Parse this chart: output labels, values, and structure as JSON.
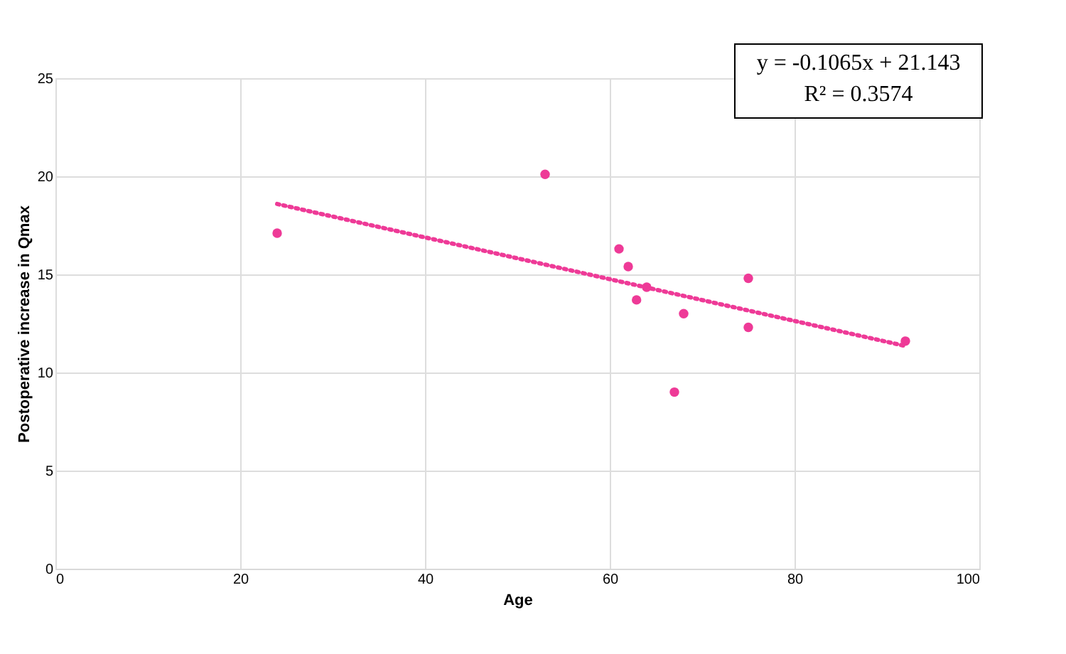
{
  "chart_data": {
    "type": "scatter",
    "xlabel": "Age",
    "ylabel": "Postoperative increase in Qmax",
    "xlim": [
      0,
      100
    ],
    "xticks": [
      0,
      20,
      40,
      60,
      80,
      100
    ],
    "ylim": [
      0,
      25
    ],
    "yticks": [
      0,
      5,
      10,
      15,
      20,
      25
    ],
    "grid": true,
    "series": [
      {
        "color": "#ee3a97",
        "marker": "circle",
        "x": [
          24,
          53,
          61,
          62,
          62.9,
          64,
          67,
          68,
          75,
          75,
          92
        ],
        "values": [
          17.1,
          20.1,
          16.3,
          15.4,
          13.7,
          14.35,
          9.0,
          13.0,
          14.8,
          12.3,
          11.6
        ]
      },
      {
        "type": "line",
        "color": "#ee3a97",
        "line_style": "dotted",
        "x": [
          24,
          92
        ],
        "values": [
          18.59,
          11.35
        ]
      }
    ],
    "annotations": [
      "y = -0.1065x + 21.143",
      "R² = 0.3574"
    ]
  }
}
